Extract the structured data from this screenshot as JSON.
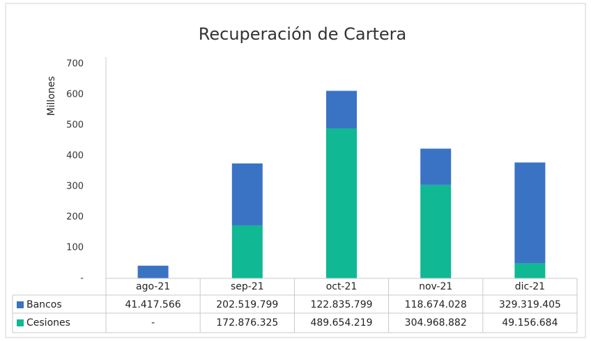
{
  "chart_data": {
    "type": "bar",
    "stacked": true,
    "title": "Recuperación de Cartera",
    "y_label": "Millones",
    "categories": [
      "ago-21",
      "sep-21",
      "oct-21",
      "nov-21",
      "dic-21"
    ],
    "series": [
      {
        "name": "Cesiones",
        "color": "#10b894",
        "values": [
          0,
          172.876325,
          489.654219,
          304.968882,
          49.156684
        ],
        "value_labels": [
          "-",
          "172.876.325",
          "489.654.219",
          "304.968.882",
          "49.156.684"
        ]
      },
      {
        "name": "Bancos",
        "color": "#3a73c4",
        "values": [
          41.417566,
          202.519799,
          122.835799,
          118.674028,
          329.319405
        ],
        "value_labels": [
          "41.417.566",
          "202.519.799",
          "122.835.799",
          "118.674.028",
          "329.319.405"
        ]
      }
    ],
    "table_order": [
      1,
      0
    ],
    "ylim": [
      0,
      700
    ],
    "yticks": [
      {
        "value": 0,
        "label": "-"
      },
      100,
      200,
      300,
      400,
      500,
      600,
      700
    ],
    "grid": false
  }
}
